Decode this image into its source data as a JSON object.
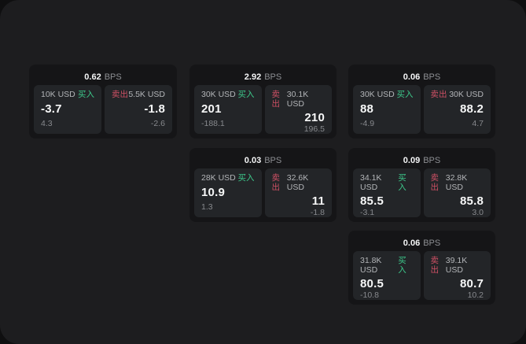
{
  "labels": {
    "buy": "买入",
    "sell": "卖出",
    "bps_unit": "BPS"
  },
  "colors": {
    "panel_bg": "#1d1d1f",
    "card_bg": "#151517",
    "pane_bg": "#232528",
    "buy_green": "#3dc98b",
    "sell_red": "#ce5064"
  },
  "cards": [
    {
      "bps": "0.62",
      "buy": {
        "amount": "10K USD",
        "value": "-3.7",
        "sub": "4.3"
      },
      "sell": {
        "amount": "5.5K USD",
        "value": "-1.8",
        "sub": "-2.6"
      }
    },
    {
      "bps": "2.92",
      "buy": {
        "amount": "30K USD",
        "value": "201",
        "sub": "-188.1"
      },
      "sell": {
        "amount": "30.1K USD",
        "value": "210",
        "sub": "196.5"
      }
    },
    {
      "bps": "0.06",
      "buy": {
        "amount": "30K USD",
        "value": "88",
        "sub": "-4.9"
      },
      "sell": {
        "amount": "30K USD",
        "value": "88.2",
        "sub": "4.7"
      }
    },
    {
      "bps": "0.03",
      "buy": {
        "amount": "28K USD",
        "value": "10.9",
        "sub": "1.3"
      },
      "sell": {
        "amount": "32.6K USD",
        "value": "11",
        "sub": "-1.8"
      }
    },
    {
      "bps": "0.09",
      "buy": {
        "amount": "34.1K USD",
        "value": "85.5",
        "sub": "-3.1"
      },
      "sell": {
        "amount": "32.8K USD",
        "value": "85.8",
        "sub": "3.0"
      }
    },
    {
      "bps": "0.06",
      "buy": {
        "amount": "31.8K USD",
        "value": "80.5",
        "sub": "-10.8"
      },
      "sell": {
        "amount": "39.1K USD",
        "value": "80.7",
        "sub": "10.2"
      }
    }
  ]
}
